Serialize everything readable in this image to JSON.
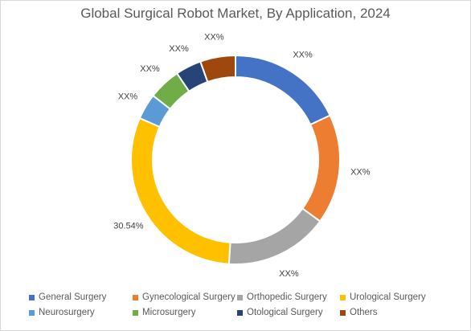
{
  "chart_data": {
    "type": "pie",
    "variant": "donut",
    "title": "Global Surgical Robot Market, By Application, 2024",
    "legend_position": "bottom",
    "slices": [
      {
        "name": "General Surgery",
        "value": 18.0,
        "label": "XX%",
        "color": "#4472c4"
      },
      {
        "name": "Gynecological Surgery",
        "value": 17.0,
        "label": "XX%",
        "color": "#ed7d31"
      },
      {
        "name": "Orthopedic Surgery",
        "value": 16.0,
        "label": "XX%",
        "color": "#a5a5a5"
      },
      {
        "name": "Urological Surgery",
        "value": 30.54,
        "label": "30.54%",
        "color": "#ffc000"
      },
      {
        "name": "Neurosurgery",
        "value": 4.0,
        "label": "XX%",
        "color": "#5b9bd5"
      },
      {
        "name": "Microsurgery",
        "value": 5.0,
        "label": "XX%",
        "color": "#70ad47"
      },
      {
        "name": "Otological Surgery",
        "value": 4.0,
        "label": "XX%",
        "color": "#264478"
      },
      {
        "name": "Others",
        "value": 5.46,
        "label": "XX%",
        "color": "#9e480e"
      }
    ]
  }
}
